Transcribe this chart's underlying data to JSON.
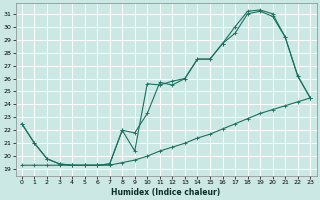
{
  "title": "",
  "xlabel": "Humidex (Indice chaleur)",
  "ylabel": "",
  "bg_color": "#cce8e4",
  "grid_color": "#ffffff",
  "line_color": "#1a7060",
  "xlim": [
    -0.5,
    23.5
  ],
  "ylim": [
    18.5,
    31.8
  ],
  "xticks": [
    0,
    1,
    2,
    3,
    4,
    5,
    6,
    7,
    8,
    9,
    10,
    11,
    12,
    13,
    14,
    15,
    16,
    17,
    18,
    19,
    20,
    21,
    22,
    23
  ],
  "yticks": [
    19,
    20,
    21,
    22,
    23,
    24,
    25,
    26,
    27,
    28,
    29,
    30,
    31
  ],
  "series1_x": [
    0,
    1,
    2,
    3,
    4,
    5,
    6,
    7,
    8,
    9,
    10,
    11,
    12,
    13,
    14,
    15,
    16,
    17,
    18,
    19,
    20,
    21,
    22,
    23
  ],
  "series1_y": [
    22.5,
    21.0,
    19.8,
    19.4,
    19.3,
    19.3,
    19.3,
    19.4,
    22.0,
    20.4,
    25.6,
    25.5,
    25.8,
    26.0,
    27.5,
    27.5,
    28.7,
    29.5,
    31.0,
    31.2,
    30.8,
    29.2,
    26.2,
    24.5
  ],
  "series2_x": [
    0,
    1,
    2,
    3,
    4,
    5,
    6,
    7,
    8,
    9,
    10,
    11,
    12,
    13,
    14,
    15,
    16,
    17,
    18,
    19,
    20,
    21,
    22,
    23
  ],
  "series2_y": [
    22.5,
    21.0,
    19.8,
    19.4,
    19.3,
    19.3,
    19.3,
    19.4,
    22.0,
    21.8,
    23.3,
    25.7,
    25.5,
    26.0,
    27.5,
    27.5,
    28.7,
    30.0,
    31.2,
    31.3,
    31.0,
    29.2,
    26.2,
    24.5
  ],
  "series3_x": [
    0,
    1,
    2,
    3,
    4,
    5,
    6,
    7,
    8,
    9,
    10,
    11,
    12,
    13,
    14,
    15,
    16,
    17,
    18,
    19,
    20,
    21,
    22,
    23
  ],
  "series3_y": [
    19.3,
    19.3,
    19.3,
    19.3,
    19.3,
    19.3,
    19.3,
    19.3,
    19.5,
    19.7,
    20.0,
    20.4,
    20.7,
    21.0,
    21.4,
    21.7,
    22.1,
    22.5,
    22.9,
    23.3,
    23.6,
    23.9,
    24.2,
    24.5
  ]
}
